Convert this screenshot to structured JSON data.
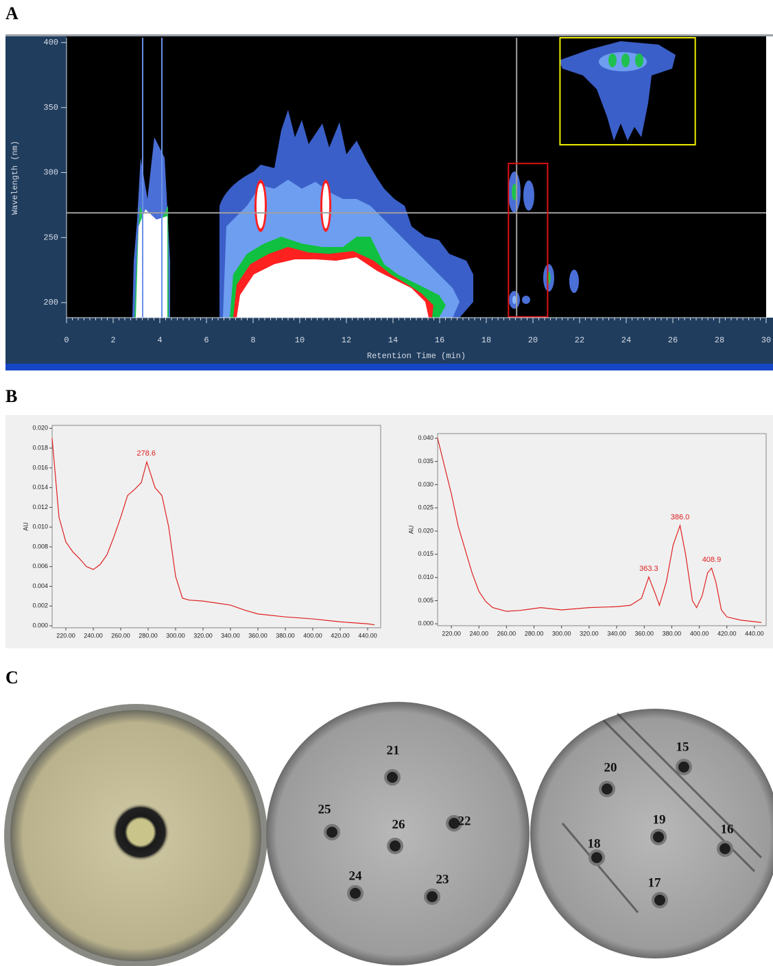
{
  "panel_labels": [
    "A",
    "B",
    "C"
  ],
  "chart_data": [
    {
      "type": "contour",
      "xlabel": "Retention Time (min)",
      "ylabel": "Wavelength (nm)",
      "xlim": [
        0,
        30
      ],
      "xticks": [
        0,
        2,
        4,
        6,
        8,
        10,
        12,
        14,
        16,
        18,
        20,
        22,
        24,
        26,
        28,
        30
      ],
      "ylim": [
        188.4,
        403.7
      ],
      "yticks": [
        200,
        250,
        300,
        350,
        400
      ],
      "crosshair": {
        "x": 19.3,
        "y": 269,
        "color": "#a0a0a0"
      },
      "regions": [
        {
          "xlim": [
            18.95,
            20.63
          ],
          "ylim": [
            189,
            307
          ],
          "color": "#e01010"
        },
        {
          "xlim": [
            21.16,
            26.96
          ],
          "ylim": [
            321.4,
            403.7
          ],
          "color": "#f0f000"
        }
      ]
    },
    {
      "type": "line",
      "ylabel": "AU",
      "color": "#e02020",
      "x": [
        210,
        215,
        220,
        225,
        230,
        235,
        240,
        245,
        250,
        255,
        260,
        265,
        270,
        275,
        279,
        285,
        290,
        295,
        300,
        305,
        310,
        320,
        330,
        340,
        350,
        360,
        380,
        400,
        420,
        440,
        445
      ],
      "values": [
        0.019,
        0.011,
        0.0085,
        0.0075,
        0.0068,
        0.006,
        0.0057,
        0.0062,
        0.0072,
        0.009,
        0.011,
        0.0132,
        0.0138,
        0.0145,
        0.0166,
        0.014,
        0.0132,
        0.01,
        0.005,
        0.0028,
        0.0026,
        0.0025,
        0.0023,
        0.0021,
        0.0016,
        0.0012,
        0.0009,
        0.0007,
        0.0004,
        0.0002,
        0.0001
      ],
      "xlim": [
        210,
        449.5
      ],
      "xticks": [
        {
          "value": 220,
          "label": "220.00"
        },
        {
          "value": 240,
          "label": "240.00"
        },
        {
          "value": 260,
          "label": "260.00"
        },
        {
          "value": 280,
          "label": "280.00"
        },
        {
          "value": 300,
          "label": "300.00"
        },
        {
          "value": 320,
          "label": "320.00"
        },
        {
          "value": 340,
          "label": "340.00"
        },
        {
          "value": 360,
          "label": "360.00"
        },
        {
          "value": 380,
          "label": "380.00"
        },
        {
          "value": 400,
          "label": "400.00"
        },
        {
          "value": 420,
          "label": "420.00"
        },
        {
          "value": 440,
          "label": "440.00"
        }
      ],
      "ylim": [
        -0.0002,
        0.0203
      ],
      "yticks": [
        {
          "value": 0,
          "label": "0.000"
        },
        {
          "value": 0.002,
          "label": "0.002"
        },
        {
          "value": 0.004,
          "label": "0.004"
        },
        {
          "value": 0.006,
          "label": "0.006"
        },
        {
          "value": 0.008,
          "label": "0.008"
        },
        {
          "value": 0.01,
          "label": "0.010"
        },
        {
          "value": 0.012,
          "label": "0.012"
        },
        {
          "value": 0.014,
          "label": "0.014"
        },
        {
          "value": 0.016,
          "label": "0.016"
        },
        {
          "value": 0.018,
          "label": "0.018"
        },
        {
          "value": 0.02,
          "label": "0.020"
        }
      ],
      "annotations": [
        {
          "text": "278.6",
          "x": 278.6,
          "y": 0.0166
        }
      ]
    },
    {
      "type": "line",
      "ylabel": "AU",
      "color": "#e02020",
      "x": [
        210,
        215,
        220,
        225,
        230,
        235,
        240,
        245,
        250,
        260,
        270,
        285,
        300,
        320,
        340,
        350,
        358,
        363.3,
        368,
        371,
        376,
        381,
        386,
        390,
        395,
        398,
        402,
        406,
        408.9,
        412,
        416,
        420,
        430,
        445
      ],
      "values": [
        0.04,
        0.034,
        0.028,
        0.021,
        0.016,
        0.011,
        0.007,
        0.0048,
        0.0035,
        0.0027,
        0.0029,
        0.0035,
        0.003,
        0.0035,
        0.0037,
        0.004,
        0.0055,
        0.0101,
        0.0065,
        0.004,
        0.009,
        0.017,
        0.0212,
        0.015,
        0.005,
        0.0035,
        0.006,
        0.011,
        0.012,
        0.009,
        0.003,
        0.0015,
        0.0008,
        0.0003
      ],
      "xlim": [
        210,
        448.5
      ],
      "xticks": [
        {
          "value": 220,
          "label": "220.00"
        },
        {
          "value": 240,
          "label": "240.00"
        },
        {
          "value": 260,
          "label": "260.00"
        },
        {
          "value": 280,
          "label": "280.00"
        },
        {
          "value": 300,
          "label": "300.00"
        },
        {
          "value": 320,
          "label": "320.00"
        },
        {
          "value": 340,
          "label": "340.00"
        },
        {
          "value": 360,
          "label": "360.00"
        },
        {
          "value": 380,
          "label": "380.00"
        },
        {
          "value": 400,
          "label": "400.00"
        },
        {
          "value": 420,
          "label": "420.00"
        },
        {
          "value": 440,
          "label": "440.00"
        }
      ],
      "ylim": [
        -0.0004,
        0.041
      ],
      "yticks": [
        {
          "value": 0,
          "label": "0.000"
        },
        {
          "value": 0.005,
          "label": "0.005"
        },
        {
          "value": 0.01,
          "label": "0.010"
        },
        {
          "value": 0.015,
          "label": "0.015"
        },
        {
          "value": 0.02,
          "label": "0.020"
        },
        {
          "value": 0.025,
          "label": "0.025"
        },
        {
          "value": 0.03,
          "label": "0.030"
        },
        {
          "value": 0.035,
          "label": "0.035"
        },
        {
          "value": 0.04,
          "label": "0.040"
        }
      ],
      "annotations": [
        {
          "text": "363.3",
          "x": 363.3,
          "y": 0.0101
        },
        {
          "text": "386.0",
          "x": 386.0,
          "y": 0.0212
        },
        {
          "text": "408.9",
          "x": 408.9,
          "y": 0.012
        }
      ]
    }
  ],
  "plates": [
    {
      "wells": []
    },
    {
      "wells": [
        "21",
        "22",
        "23",
        "24",
        "25",
        "26"
      ]
    },
    {
      "wells": [
        "15",
        "16",
        "17",
        "18",
        "19",
        "20"
      ]
    }
  ]
}
